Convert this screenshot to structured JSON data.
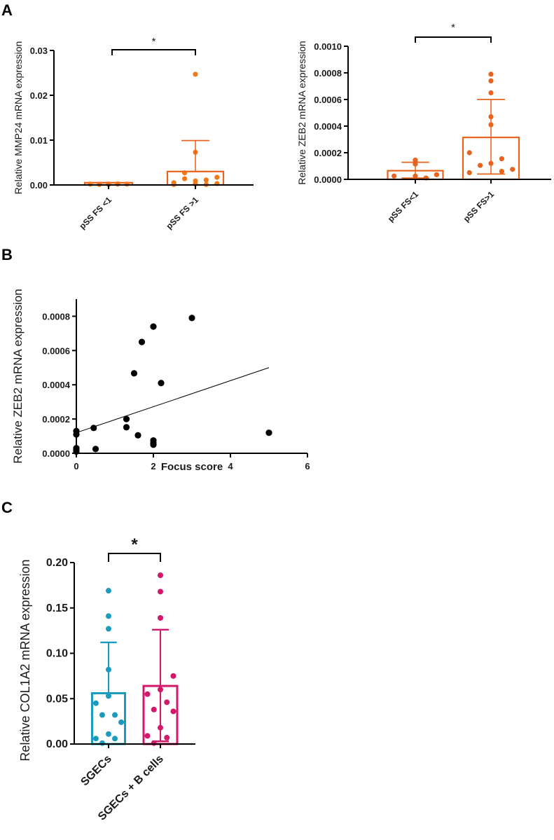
{
  "panels": [
    "A",
    "B",
    "C"
  ],
  "colors": {
    "orange_point": "#EE7A1C",
    "orange_bar": "#E8631E",
    "blue": "#1A9BBE",
    "pink": "#D3176B",
    "black": "#000000"
  },
  "chart_data": [
    {
      "type": "bar",
      "panel": "A",
      "ylabel": "Relative MMP24 mRNA expression",
      "categories": [
        "pSS FS <1",
        "pSS FS >1"
      ],
      "yticks": [
        "0.00",
        "0.01",
        "0.02",
        "0.03"
      ],
      "ylim": [
        0,
        0.03
      ],
      "means": [
        0.0005,
        0.003
      ],
      "sd_upper": [
        0.0005,
        0.0099
      ],
      "sd_lower": [
        0.0005,
        0.003
      ],
      "points": [
        [
          0.0002,
          0.0002,
          0.0001,
          0.0002,
          0.0001,
          0.0002,
          0.0002
        ],
        [
          0.0247,
          0.0073,
          0.0027,
          0.0017,
          0.0009,
          0.0005,
          0.0011,
          0.0014,
          0.0003,
          0.0002,
          0.0001,
          0.0001
        ]
      ],
      "significance": "*"
    },
    {
      "type": "bar",
      "panel": "A",
      "ylabel": "Relative ZEB2 mRNA expression",
      "categories": [
        "pSS FS<1",
        "pSS FS>1"
      ],
      "yticks": [
        "0.0000",
        "0.0002",
        "0.0004",
        "0.0006",
        "0.0008",
        "0.0010"
      ],
      "ylim": [
        0,
        0.001
      ],
      "means": [
        6.5e-05,
        0.000315
      ],
      "sd_upper": [
        0.000128,
        0.0006
      ],
      "sd_lower": [
        1e-05,
        4e-05
      ],
      "points": [
        [
          0.000145,
          0.00013,
          0.000115,
          3.5e-05,
          2.5e-05,
          2.5e-05,
          1e-05
        ],
        [
          0.00079,
          0.00074,
          0.00065,
          0.00047,
          0.00041,
          0.0002,
          0.000155,
          0.000105,
          7.5e-05,
          0.00012,
          5e-05,
          6e-05
        ]
      ],
      "significance": "*"
    },
    {
      "type": "scatter",
      "panel": "B",
      "xlabel": "Focus score",
      "ylabel": "Relative ZEB2 mRNA expression",
      "xticks": [
        "0",
        "2",
        "4",
        "6"
      ],
      "yticks": [
        "0.0000",
        "0.0002",
        "0.0004",
        "0.0006",
        "0.0008"
      ],
      "xlim": [
        0,
        6
      ],
      "ylim": [
        0,
        0.0009
      ],
      "x": [
        0,
        0,
        0,
        0,
        0,
        0.45,
        0.5,
        1.3,
        1.3,
        1.5,
        1.6,
        1.7,
        2,
        2,
        2,
        2,
        2.2,
        3,
        5
      ],
      "y": [
        0.00013,
        0.00011,
        3e-05,
        2e-05,
        1e-05,
        0.000148,
        2.5e-05,
        0.0002,
        0.000152,
        0.000467,
        0.000105,
        0.00065,
        0.00074,
        7.5e-05,
        6e-05,
        5e-05,
        0.00041,
        0.00079,
        0.00012
      ],
      "regression": {
        "x": [
          0,
          5
        ],
        "y": [
          0.00012,
          0.0005
        ]
      }
    },
    {
      "type": "bar",
      "panel": "C",
      "ylabel": "Relative COL1A2 mRNA expression",
      "categories": [
        "SGECs",
        "SGECs + B cells"
      ],
      "yticks": [
        "0.00",
        "0.05",
        "0.10",
        "0.15",
        "0.20"
      ],
      "ylim": [
        0,
        0.2
      ],
      "means": [
        0.056,
        0.064
      ],
      "sd_upper": [
        0.112,
        0.126
      ],
      "sd_lower": [
        0.056,
        0.003
      ],
      "points": [
        [
          0.169,
          0.141,
          0.127,
          0.082,
          0.053,
          0.045,
          0.032,
          0.032,
          0.024,
          0.011,
          0.006,
          0.006,
          0.001
        ],
        [
          0.186,
          0.168,
          0.139,
          0.075,
          0.06,
          0.055,
          0.046,
          0.038,
          0.036,
          0.018,
          0.009,
          0.007,
          0.001
        ]
      ],
      "significance": "*"
    }
  ]
}
